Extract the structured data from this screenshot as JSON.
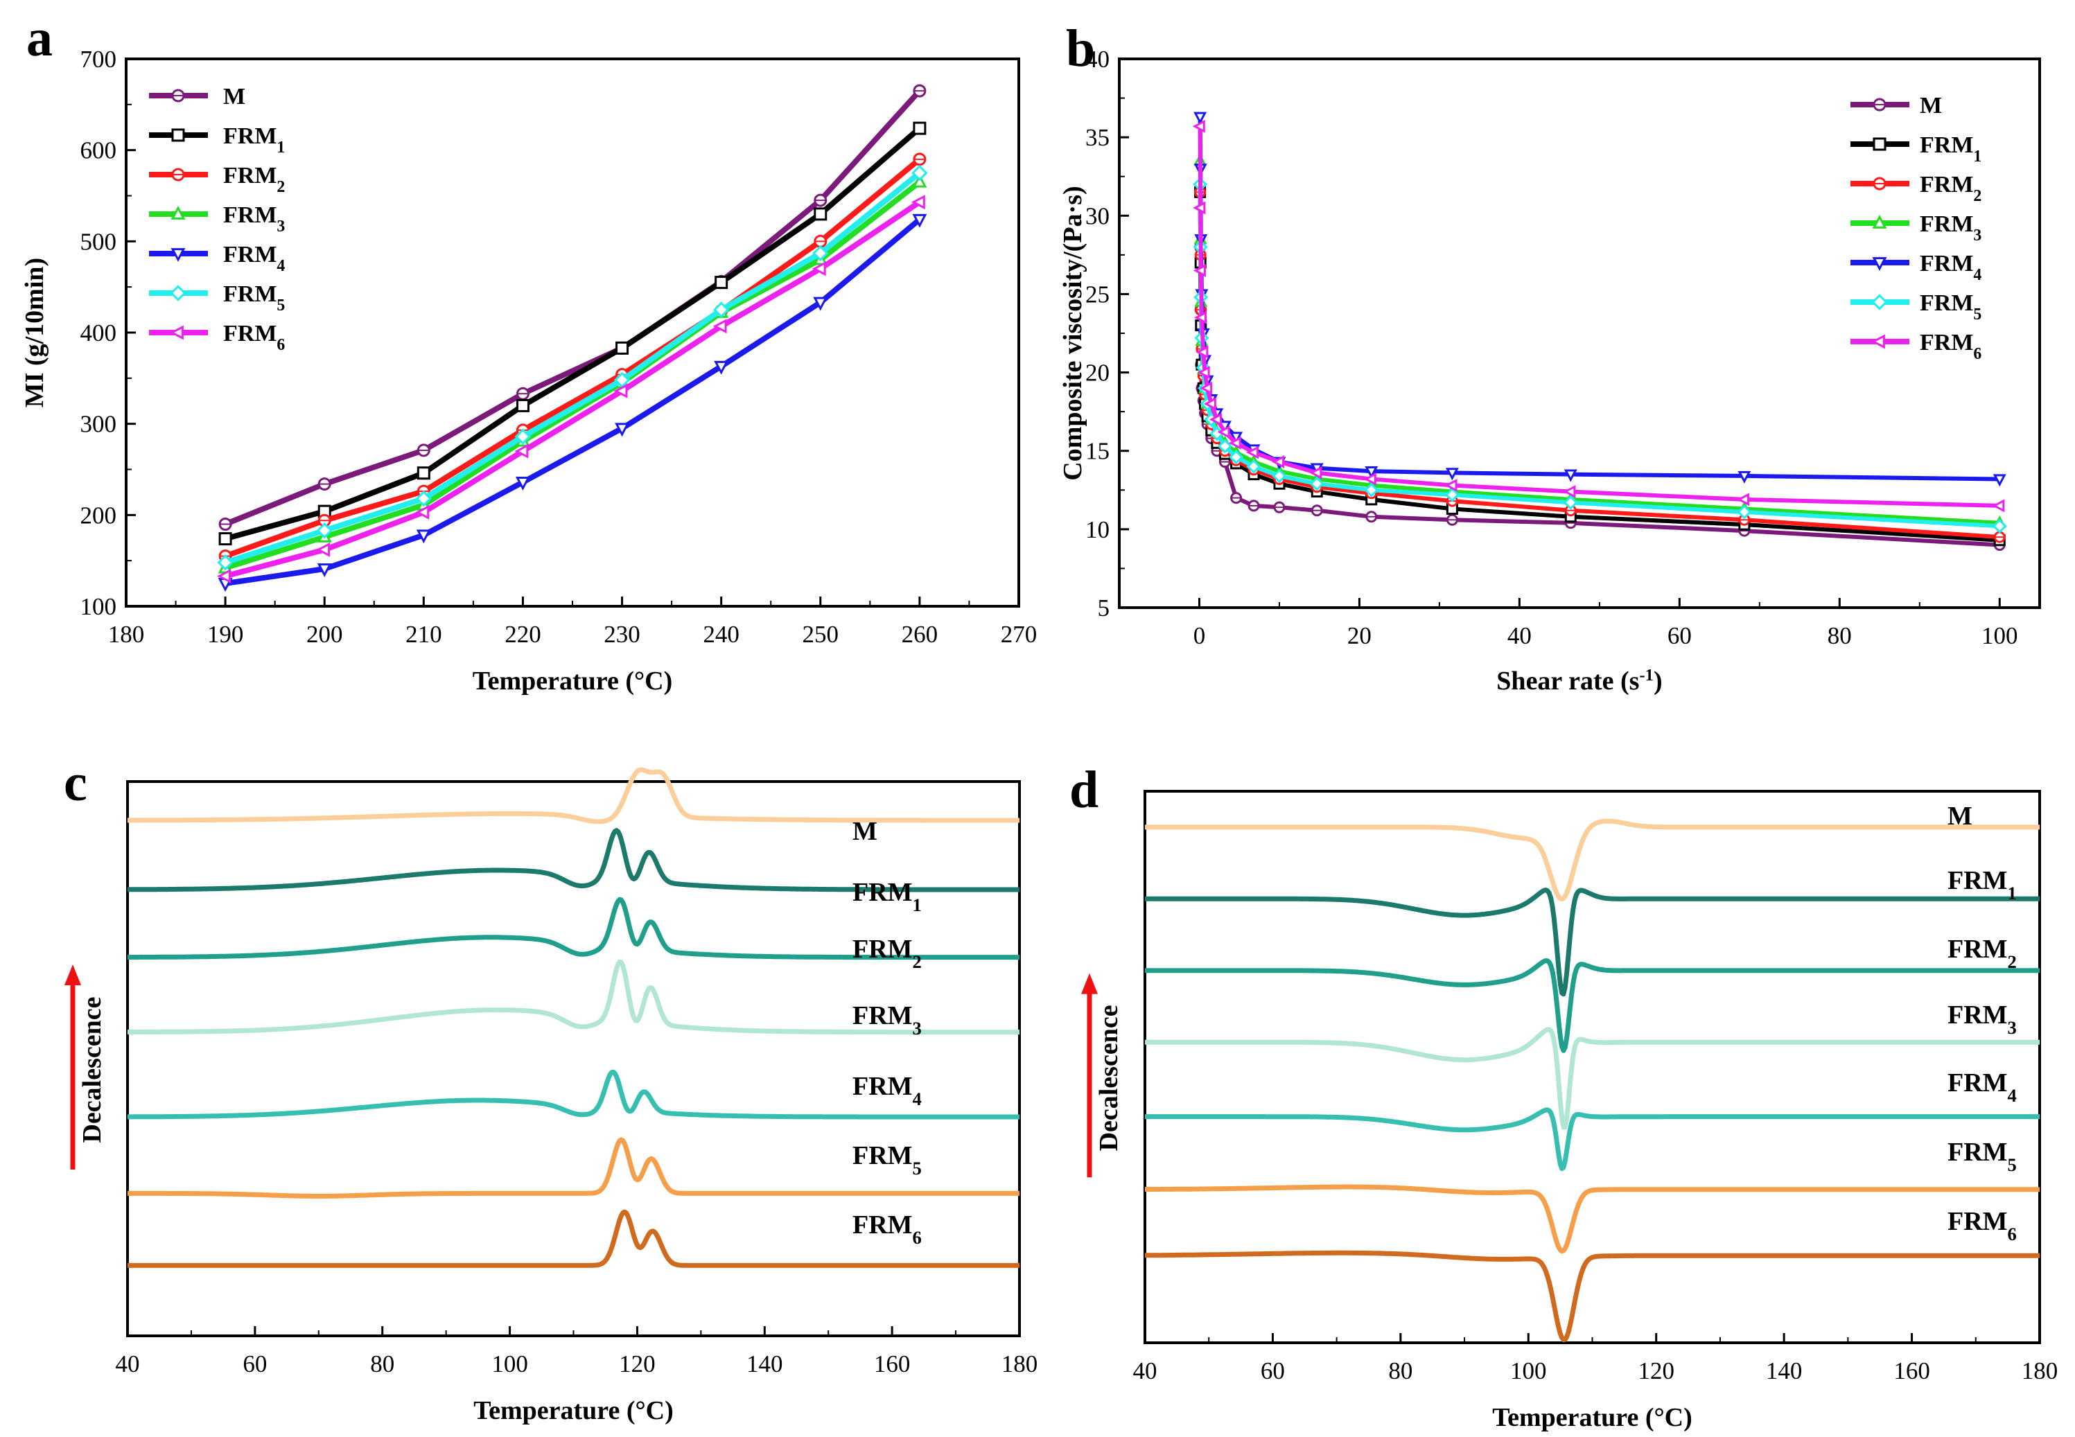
{
  "chart_data": [
    {
      "panel": "a",
      "type": "line",
      "xlabel": "Temperature (°C)",
      "ylabel": "MI (g/10min)",
      "xlim": [
        180,
        270
      ],
      "ylim": [
        100,
        700
      ],
      "xticks": [
        180,
        190,
        200,
        210,
        220,
        230,
        240,
        250,
        260,
        270
      ],
      "yticks": [
        100,
        200,
        300,
        400,
        500,
        600,
        700
      ],
      "legend_position": "top-left",
      "x": [
        190,
        200,
        210,
        220,
        230,
        240,
        250,
        260
      ],
      "series": [
        {
          "name": "M",
          "sub": "",
          "color": "#7B1A7B",
          "marker": "circle",
          "values": [
            190,
            234,
            271,
            333,
            383,
            456,
            545,
            665
          ]
        },
        {
          "name": "FRM",
          "sub": "1",
          "color": "#000000",
          "marker": "square",
          "values": [
            174,
            204,
            246,
            320,
            383,
            455,
            530,
            624
          ]
        },
        {
          "name": "FRM",
          "sub": "2",
          "color": "#FF1A1A",
          "marker": "circle",
          "values": [
            155,
            194,
            226,
            293,
            354,
            424,
            500,
            590
          ]
        },
        {
          "name": "FRM",
          "sub": "3",
          "color": "#22DD22",
          "marker": "triangle-up",
          "values": [
            142,
            176,
            211,
            281,
            345,
            422,
            480,
            565
          ]
        },
        {
          "name": "FRM",
          "sub": "4",
          "color": "#1A1AEE",
          "marker": "triangle-down",
          "values": [
            125,
            141,
            178,
            236,
            295,
            363,
            433,
            524
          ]
        },
        {
          "name": "FRM",
          "sub": "5",
          "color": "#22EEEE",
          "marker": "diamond",
          "values": [
            148,
            183,
            218,
            286,
            348,
            425,
            487,
            575
          ]
        },
        {
          "name": "FRM",
          "sub": "6",
          "color": "#EE22EE",
          "marker": "triangle-left",
          "values": [
            133,
            162,
            203,
            270,
            336,
            407,
            470,
            543
          ]
        }
      ]
    },
    {
      "panel": "b",
      "type": "line",
      "xlabel": "Shear rate (s",
      "xlabel_sup": "-1",
      "xlabel_end": ")",
      "ylabel": "Composite viscosity/(Pa·s)",
      "xlim": [
        -10,
        105
      ],
      "ylim": [
        5,
        40
      ],
      "xticks": [
        0,
        20,
        40,
        60,
        80,
        100
      ],
      "yticks": [
        5,
        10,
        15,
        20,
        25,
        30,
        35,
        40
      ],
      "legend_position": "top-right",
      "series": [
        {
          "name": "M",
          "sub": "",
          "color": "#7B1A7B",
          "marker": "circle",
          "x": [
            0.1,
            0.15,
            0.2,
            0.3,
            0.5,
            0.7,
            1.0,
            1.5,
            2.2,
            3.2,
            4.6,
            6.8,
            10,
            14.7,
            21.5,
            31.6,
            46.4,
            68.1,
            100
          ],
          "y": [
            28,
            24,
            20.5,
            19,
            18.2,
            17.4,
            16.7,
            15.8,
            15.0,
            14.3,
            12.0,
            11.5,
            11.4,
            11.2,
            10.8,
            10.6,
            10.4,
            9.9,
            9.0
          ]
        },
        {
          "name": "FRM",
          "sub": "1",
          "color": "#000000",
          "marker": "square",
          "x": [
            0.1,
            0.15,
            0.2,
            0.3,
            0.5,
            0.7,
            1.0,
            1.5,
            2.2,
            3.2,
            4.6,
            6.8,
            10,
            14.7,
            21.5,
            31.6,
            46.4,
            68.1,
            100
          ],
          "y": [
            31.5,
            27,
            23,
            20.5,
            19,
            18,
            17.2,
            16.3,
            15.5,
            14.8,
            14.2,
            13.5,
            12.9,
            12.4,
            11.9,
            11.3,
            10.8,
            10.3,
            9.3
          ]
        },
        {
          "name": "FRM",
          "sub": "2",
          "color": "#FF1A1A",
          "marker": "circle",
          "x": [
            0.1,
            0.15,
            0.2,
            0.3,
            0.5,
            0.7,
            1.0,
            1.5,
            2.2,
            3.2,
            4.6,
            6.8,
            10,
            14.7,
            21.5,
            31.6,
            46.4,
            68.1,
            100
          ],
          "y": [
            31.5,
            27.5,
            24,
            21.5,
            19.8,
            18.6,
            17.6,
            16.7,
            15.8,
            15.0,
            14.4,
            13.8,
            13.2,
            12.7,
            12.3,
            11.8,
            11.2,
            10.6,
            9.5
          ]
        },
        {
          "name": "FRM",
          "sub": "3",
          "color": "#22DD22",
          "marker": "triangle-up",
          "x": [
            0.1,
            0.15,
            0.2,
            0.3,
            0.5,
            0.7,
            1.0,
            1.5,
            2.2,
            3.2,
            4.6,
            6.8,
            10,
            14.7,
            21.5,
            31.6,
            46.4,
            68.1,
            100
          ],
          "y": [
            33.5,
            28.5,
            24.5,
            22,
            20.2,
            19,
            18,
            17.0,
            16.2,
            15.5,
            14.9,
            14.3,
            13.7,
            13.2,
            12.8,
            12.4,
            11.9,
            11.3,
            10.4
          ]
        },
        {
          "name": "FRM",
          "sub": "4",
          "color": "#1A1AEE",
          "marker": "triangle-down",
          "x": [
            0.1,
            0.15,
            0.2,
            0.3,
            0.5,
            0.7,
            1.0,
            1.5,
            2.2,
            3.2,
            4.6,
            6.8,
            10,
            14.7,
            21.5,
            31.6,
            46.4,
            68.1,
            100
          ],
          "y": [
            36.3,
            33,
            28.5,
            25,
            22.5,
            20.8,
            19.5,
            18.3,
            17.4,
            16.6,
            15.9,
            15.1,
            14.3,
            13.9,
            13.7,
            13.6,
            13.5,
            13.4,
            13.2
          ]
        },
        {
          "name": "FRM",
          "sub": "5",
          "color": "#22EEEE",
          "marker": "diamond",
          "x": [
            0.1,
            0.15,
            0.2,
            0.3,
            0.5,
            0.7,
            1.0,
            1.5,
            2.2,
            3.2,
            4.6,
            6.8,
            10,
            14.7,
            21.5,
            31.6,
            46.4,
            68.1,
            100
          ],
          "y": [
            32,
            28,
            24.8,
            22.2,
            20.3,
            19,
            18,
            17.0,
            16.1,
            15.3,
            14.6,
            14.0,
            13.4,
            12.9,
            12.5,
            12.2,
            11.7,
            11.1,
            10.2
          ]
        },
        {
          "name": "FRM",
          "sub": "6",
          "color": "#EE22EE",
          "marker": "triangle-left",
          "x": [
            0.1,
            0.15,
            0.2,
            0.3,
            0.5,
            0.7,
            1.0,
            1.5,
            2.2,
            3.2,
            4.6,
            6.8,
            10,
            14.7,
            21.5,
            31.6,
            46.4,
            68.1,
            100
          ],
          "y": [
            35.7,
            30.5,
            26.5,
            23.5,
            21.3,
            20,
            19,
            18.0,
            17.0,
            16.2,
            15.5,
            14.9,
            14.3,
            13.6,
            13.2,
            12.8,
            12.4,
            11.9,
            11.5
          ]
        }
      ]
    },
    {
      "panel": "c",
      "type": "line",
      "subtype": "DSC cooling curves (stacked, no y scale)",
      "xlabel": "Temperature (°C)",
      "ylabel": "Decalescence",
      "xlim": [
        40,
        180
      ],
      "xticks": [
        40,
        60,
        80,
        100,
        120,
        140,
        160,
        180
      ],
      "series": [
        {
          "name": "M",
          "sub": "",
          "color": "#FCCF9A",
          "baseline": 0.93,
          "features": [
            {
              "c": 100,
              "w": 20,
              "a": 0.012
            },
            {
              "c": 120.2,
              "w": 1.8,
              "a": 0.08
            },
            {
              "c": 124,
              "w": 1.6,
              "a": 0.07
            },
            {
              "c": 114,
              "w": 3,
              "a": -0.012
            }
          ]
        },
        {
          "name": "FRM",
          "sub": "1",
          "color": "#1B7A6C",
          "baseline": 0.805,
          "features": [
            {
              "c": 98,
              "w": 18,
              "a": 0.035
            },
            {
              "c": 111,
              "w": 2.5,
              "a": -0.02
            },
            {
              "c": 116.8,
              "w": 1.3,
              "a": 0.09
            },
            {
              "c": 121.8,
              "w": 1.3,
              "a": 0.055
            },
            {
              "c": 119.3,
              "w": 1.2,
              "a": -0.02
            }
          ]
        },
        {
          "name": "FRM",
          "sub": "2",
          "color": "#20A08C",
          "baseline": 0.683,
          "features": [
            {
              "c": 97,
              "w": 17,
              "a": 0.036
            },
            {
              "c": 111,
              "w": 2.5,
              "a": -0.02
            },
            {
              "c": 117.4,
              "w": 1.3,
              "a": 0.09
            },
            {
              "c": 122,
              "w": 1.3,
              "a": 0.055
            },
            {
              "c": 119.8,
              "w": 1.2,
              "a": -0.02
            }
          ]
        },
        {
          "name": "FRM",
          "sub": "3",
          "color": "#B2E6D4",
          "baseline": 0.548,
          "features": [
            {
              "c": 98,
              "w": 17,
              "a": 0.04
            },
            {
              "c": 111,
              "w": 2.5,
              "a": -0.02
            },
            {
              "c": 117.4,
              "w": 1.2,
              "a": 0.11
            },
            {
              "c": 122,
              "w": 1.2,
              "a": 0.07
            },
            {
              "c": 119.8,
              "w": 1.2,
              "a": -0.025
            }
          ]
        },
        {
          "name": "FRM",
          "sub": "4",
          "color": "#36BFB0",
          "baseline": 0.395,
          "features": [
            {
              "c": 95,
              "w": 17,
              "a": 0.03
            },
            {
              "c": 111,
              "w": 2.5,
              "a": -0.015
            },
            {
              "c": 116.2,
              "w": 1.2,
              "a": 0.07
            },
            {
              "c": 121,
              "w": 1.2,
              "a": 0.038
            },
            {
              "c": 118.8,
              "w": 1.1,
              "a": -0.015
            }
          ]
        },
        {
          "name": "FRM",
          "sub": "5",
          "color": "#F59F4A",
          "baseline": 0.257,
          "features": [
            {
              "c": 70,
              "w": 8,
              "a": -0.005
            },
            {
              "c": 117.6,
              "w": 1.4,
              "a": 0.1
            },
            {
              "c": 122.1,
              "w": 1.4,
              "a": 0.065
            },
            {
              "c": 119.8,
              "w": 1.2,
              "a": -0.02
            }
          ]
        },
        {
          "name": "FRM",
          "sub": "6",
          "color": "#D06A1E",
          "baseline": 0.127,
          "features": [
            {
              "c": 118.1,
              "w": 1.4,
              "a": 0.1
            },
            {
              "c": 122.3,
              "w": 1.4,
              "a": 0.065
            },
            {
              "c": 120.2,
              "w": 1.2,
              "a": -0.02
            }
          ]
        }
      ]
    },
    {
      "panel": "d",
      "type": "line",
      "subtype": "DSC heating curves (stacked, no y scale)",
      "xlabel": "Temperature (°C)",
      "ylabel": "Decalescence",
      "xlim": [
        40,
        180
      ],
      "xticks": [
        40,
        60,
        80,
        100,
        120,
        140,
        160,
        180
      ],
      "series": [
        {
          "name": "M",
          "sub": "",
          "color": "#FCCF9A",
          "baseline": 0.935,
          "features": [
            {
              "c": 100,
              "w": 5,
              "a": -0.02
            },
            {
              "c": 105.3,
              "w": 1.8,
              "a": -0.12
            },
            {
              "c": 112,
              "w": 3,
              "a": 0.012
            }
          ]
        },
        {
          "name": "FRM",
          "sub": "1",
          "color": "#1B7A6C",
          "baseline": 0.805,
          "features": [
            {
              "c": 90,
              "w": 8,
              "a": -0.03
            },
            {
              "c": 104,
              "w": 2.5,
              "a": 0.03
            },
            {
              "c": 105.4,
              "w": 0.9,
              "a": -0.2
            },
            {
              "c": 108,
              "w": 2,
              "a": 0.012
            }
          ]
        },
        {
          "name": "FRM",
          "sub": "2",
          "color": "#20A08C",
          "baseline": 0.675,
          "features": [
            {
              "c": 90,
              "w": 8,
              "a": -0.026
            },
            {
              "c": 104,
              "w": 2.5,
              "a": 0.03
            },
            {
              "c": 105.5,
              "w": 0.9,
              "a": -0.17
            },
            {
              "c": 108,
              "w": 2,
              "a": 0.008
            }
          ]
        },
        {
          "name": "FRM",
          "sub": "3",
          "color": "#B2E6D4",
          "baseline": 0.545,
          "features": [
            {
              "c": 90,
              "w": 8,
              "a": -0.032
            },
            {
              "c": 104,
              "w": 2.5,
              "a": 0.035
            },
            {
              "c": 105.6,
              "w": 0.8,
              "a": -0.18
            }
          ]
        },
        {
          "name": "FRM",
          "sub": "4",
          "color": "#36BFB0",
          "baseline": 0.41,
          "features": [
            {
              "c": 90,
              "w": 8,
              "a": -0.024
            },
            {
              "c": 104,
              "w": 2.5,
              "a": 0.022
            },
            {
              "c": 105.3,
              "w": 0.8,
              "a": -0.11
            }
          ]
        },
        {
          "name": "FRM",
          "sub": "5",
          "color": "#F59F4A",
          "baseline": 0.278,
          "features": [
            {
              "c": 75,
              "w": 14,
              "a": 0.005
            },
            {
              "c": 93,
              "w": 8,
              "a": -0.008
            },
            {
              "c": 105.3,
              "w": 1.5,
              "a": -0.11
            }
          ]
        },
        {
          "name": "FRM",
          "sub": "6",
          "color": "#D06A1E",
          "baseline": 0.158,
          "features": [
            {
              "c": 72,
              "w": 15,
              "a": 0.005
            },
            {
              "c": 95,
              "w": 8,
              "a": -0.008
            },
            {
              "c": 105.6,
              "w": 1.5,
              "a": -0.15
            }
          ]
        }
      ]
    }
  ],
  "panel_letters": [
    "a",
    "b",
    "c",
    "d"
  ]
}
